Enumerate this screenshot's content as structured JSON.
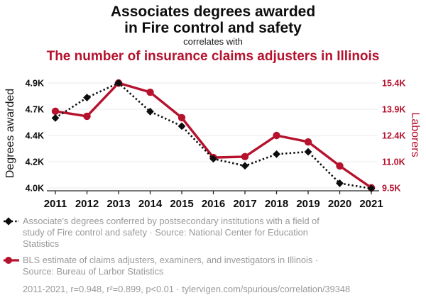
{
  "header": {
    "title_line1": "Associates degrees awarded",
    "title_line2": "in Fire control and safety",
    "connector": "correlates with",
    "subtitle": "The number of insurance claims adjusters in Illinois"
  },
  "chart_data": {
    "type": "line",
    "x": [
      2011,
      2012,
      2013,
      2014,
      2015,
      2016,
      2017,
      2018,
      2019,
      2020,
      2021
    ],
    "x_tick_labels": [
      "2011",
      "2012",
      "2013",
      "2014",
      "2015",
      "2016",
      "2017",
      "2018",
      "2019",
      "2020",
      "2021"
    ],
    "series": [
      {
        "name": "Associate's degrees in Fire control and safety",
        "axis": "left",
        "color": "#0d0d0d",
        "line_style": "dotted",
        "marker": "diamond",
        "values": [
          4600,
          4775,
          4900,
          4655,
          4530,
          4250,
          4190,
          4290,
          4310,
          4040,
          3995
        ]
      },
      {
        "name": "Insurance claims adjusters in Illinois",
        "axis": "right",
        "color": "#b5122e",
        "line_style": "solid",
        "marker": "circle",
        "values": [
          13810,
          13530,
          15400,
          14880,
          13450,
          11210,
          11260,
          12450,
          12090,
          10740,
          9510
        ]
      }
    ],
    "left_axis": {
      "label": "Degrees awarded",
      "tick_labels": [
        "4.0K",
        "4.2K",
        "4.4K",
        "4.7K",
        "4.9K"
      ],
      "min": 4000,
      "max": 4900
    },
    "right_axis": {
      "label": "Laborers",
      "tick_labels": [
        "9.5K",
        "11.0K",
        "12.4K",
        "13.9K",
        "15.4K"
      ],
      "min": 9500,
      "max": 15400
    },
    "grid": "horizontal",
    "legend_position": "bottom"
  },
  "legend": {
    "items": [
      {
        "marker": "diamond-dotted",
        "color": "#0d0d0d",
        "label": "Associate's degrees conferred by postsecondary institutions with a field of\nstudy of Fire control and safety · Source: National Center for Education\nStatistics"
      },
      {
        "marker": "circle-solid",
        "color": "#b5122e",
        "label": "BLS estimate of claims adjusters, examiners, and investigators in Illinois ·\nSource: Bureau of Larbor Statistics"
      }
    ],
    "footnote": "2011-2021, r=0.948, r²=0.899, p<0.01 · tylervigen.com/spurious/correlation/39348"
  },
  "colors": {
    "accent_red": "#b5122e",
    "black": "#0d0d0d",
    "text_gray": "#999999",
    "grid": "#e8e8e8",
    "axis": "#262626"
  }
}
